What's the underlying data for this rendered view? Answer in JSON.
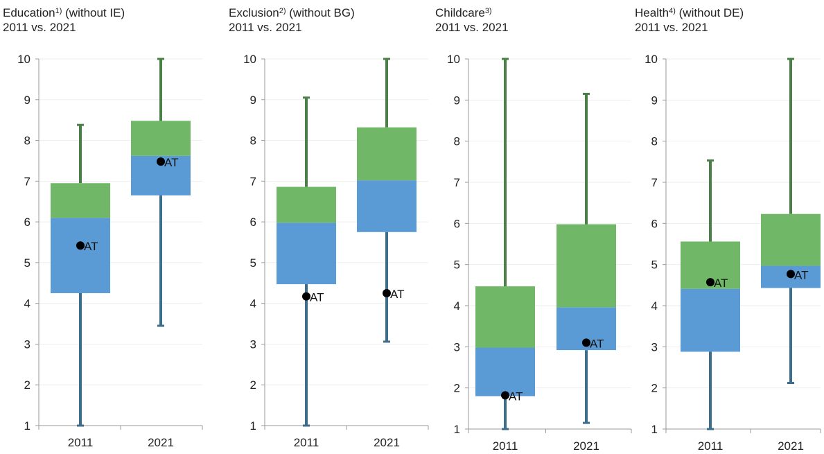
{
  "colors": {
    "lower_box": "#5b9bd5",
    "upper_box": "#70b868",
    "lower_whisker": "#3c6e8c",
    "upper_whisker": "#4a8048",
    "marker": "#000000",
    "axis": "#999999"
  },
  "chart_data": [
    {
      "type": "boxplot",
      "title_line1": "Education",
      "footnote": "1)",
      "title_suffix": " (without IE)",
      "subtitle": "2011 vs. 2021",
      "ylim": [
        1,
        10
      ],
      "yticks": [
        "1",
        "2",
        "3",
        "4",
        "5",
        "6",
        "7",
        "8",
        "9",
        "10"
      ],
      "categories": [
        "2011",
        "2021"
      ],
      "boxes": [
        {
          "min": 1.0,
          "q1": 4.25,
          "median": 6.1,
          "q3": 6.95,
          "max": 8.38,
          "marker": 5.42,
          "marker_label": "AT"
        },
        {
          "min": 3.45,
          "q1": 6.65,
          "median": 7.62,
          "q3": 8.48,
          "max": 10.0,
          "marker": 7.48,
          "marker_label": "AT"
        }
      ]
    },
    {
      "type": "boxplot",
      "title_line1": "Exclusion",
      "footnote": "2)",
      "title_suffix": " (without BG)",
      "subtitle": "2011 vs. 2021",
      "ylim": [
        1,
        10
      ],
      "yticks": [
        "1",
        "2",
        "3",
        "4",
        "5",
        "6",
        "7",
        "8",
        "9",
        "10"
      ],
      "categories": [
        "2011",
        "2021"
      ],
      "boxes": [
        {
          "min": 1.0,
          "q1": 4.47,
          "median": 5.98,
          "q3": 6.86,
          "max": 9.05,
          "marker": 4.17,
          "marker_label": "AT"
        },
        {
          "min": 3.06,
          "q1": 5.75,
          "median": 7.02,
          "q3": 8.32,
          "max": 10.0,
          "marker": 4.25,
          "marker_label": "AT"
        }
      ]
    },
    {
      "type": "boxplot",
      "title_line1": "Childcare",
      "footnote": "3)",
      "title_suffix": "",
      "subtitle": "2011 vs. 2021",
      "ylim": [
        1,
        10
      ],
      "yticks": [
        "1",
        "2",
        "3",
        "4",
        "5",
        "6",
        "7",
        "8",
        "9",
        "10"
      ],
      "categories": [
        "2011",
        "2021"
      ],
      "boxes": [
        {
          "min": 1.0,
          "q1": 1.8,
          "median": 2.98,
          "q3": 4.47,
          "max": 10.0,
          "marker": 1.82,
          "marker_label": "AT"
        },
        {
          "min": 1.15,
          "q1": 2.92,
          "median": 3.96,
          "q3": 5.98,
          "max": 9.15,
          "marker": 3.1,
          "marker_label": "AT"
        }
      ]
    },
    {
      "type": "boxplot",
      "title_line1": "Health",
      "footnote": "4)",
      "title_suffix": " (without DE)",
      "subtitle": "2011 vs. 2021",
      "ylim": [
        1,
        10
      ],
      "yticks": [
        "1",
        "2",
        "3",
        "4",
        "5",
        "6",
        "7",
        "8",
        "9",
        "10"
      ],
      "categories": [
        "2011",
        "2021"
      ],
      "boxes": [
        {
          "min": 1.0,
          "q1": 2.88,
          "median": 4.41,
          "q3": 5.56,
          "max": 7.53,
          "marker": 4.57,
          "marker_label": "AT"
        },
        {
          "min": 2.12,
          "q1": 4.43,
          "median": 4.97,
          "q3": 6.23,
          "max": 10.0,
          "marker": 4.77,
          "marker_label": "AT"
        }
      ]
    }
  ]
}
